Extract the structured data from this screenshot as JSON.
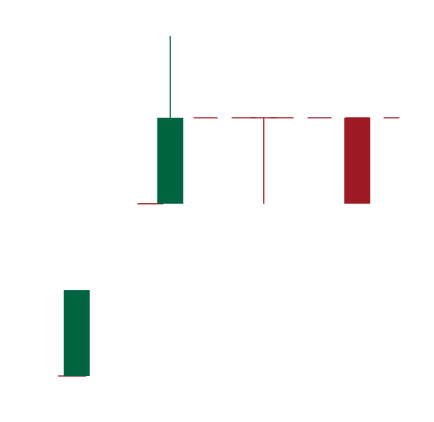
{
  "colors": {
    "background": "#ffffff",
    "up": "#006540",
    "down": "#9e1b25",
    "guide": "#9e1b25"
  },
  "chart_data": {
    "type": "candlestick",
    "title": "",
    "xlabel": "",
    "ylabel": "",
    "grid": false,
    "legend": "none",
    "ylim": [
      0,
      100
    ],
    "candles": [
      {
        "x": 1,
        "open": 6.8,
        "close": 29.3,
        "low": 6.8,
        "high": 29.3,
        "direction": "up"
      },
      {
        "x": 3,
        "open": 51.9,
        "close": 74.4,
        "low": 51.9,
        "high": 95.8,
        "direction": "up"
      },
      {
        "x": 5,
        "open": 74.4,
        "close": 74.4,
        "low": 51.9,
        "high": 74.4,
        "direction": "flat"
      },
      {
        "x": 7,
        "open": 74.4,
        "close": 51.9,
        "low": 51.9,
        "high": 74.4,
        "direction": "down"
      }
    ],
    "guides": [
      {
        "kind": "dashed-horizontal",
        "y": 74.4,
        "x_from": 3.5,
        "x_to": 7.9
      },
      {
        "kind": "solid-horizontal",
        "y": 51.9,
        "x_from": 2.3,
        "x_to": 2.85
      },
      {
        "kind": "solid-horizontal",
        "y": 6.8,
        "x_from": 0.6,
        "x_to": 1.2
      },
      {
        "kind": "solid-vertical",
        "x": 0.95,
        "y_from": 6.8,
        "y_to": 29.3
      }
    ]
  }
}
